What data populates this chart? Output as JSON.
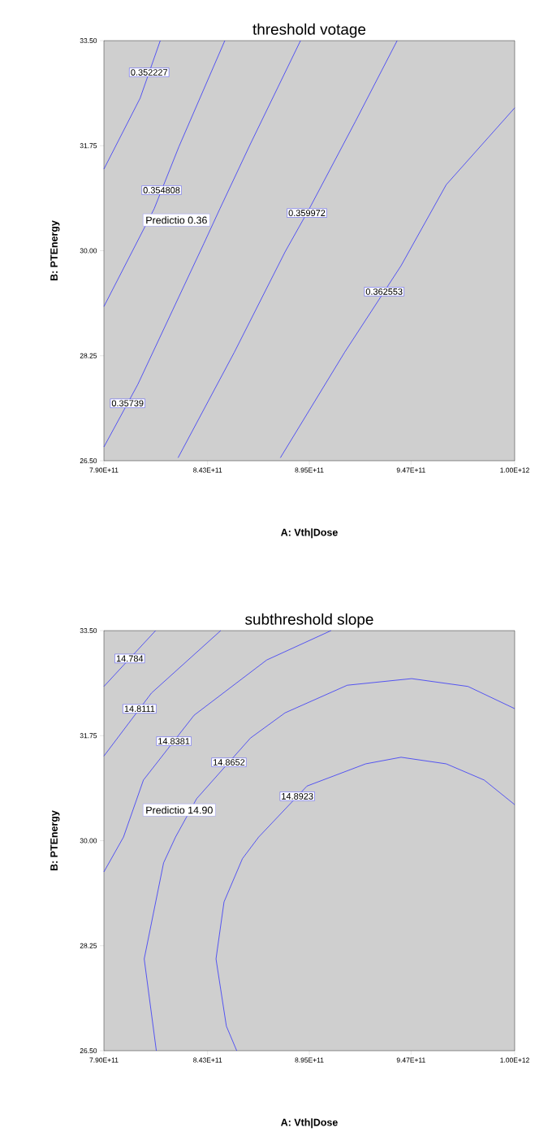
{
  "chart_data": [
    {
      "type": "line",
      "title": "threshold votage",
      "xlabel": "A: Vth|Dose",
      "ylabel": "B: PTEnergy",
      "xlim": [
        790000000000.0,
        1000000000000.0
      ],
      "ylim": [
        26.5,
        33.5
      ],
      "xticks": [
        {
          "value": 790000000000.0,
          "label": "7.90E+11"
        },
        {
          "value": 843000000000.0,
          "label": "8.43E+11"
        },
        {
          "value": 895000000000.0,
          "label": "8.95E+11"
        },
        {
          "value": 947000000000.0,
          "label": "9.47E+11"
        },
        {
          "value": 1000000000000.0,
          "label": "1.00E+12"
        }
      ],
      "yticks": [
        {
          "value": 26.5,
          "label": "26.50"
        },
        {
          "value": 28.25,
          "label": "28.25"
        },
        {
          "value": 30,
          "label": "30.00"
        },
        {
          "value": 31.75,
          "label": "31.75"
        },
        {
          "value": 33.5,
          "label": "33.50"
        }
      ],
      "marker": "none",
      "line_style": "solid",
      "series": [
        {
          "name": "0.352227",
          "color": "#2020ff",
          "x": [
            790000000000.0,
            808500000000.0,
            818800000000.0
          ],
          "values": [
            31.36,
            32.54,
            33.5
          ]
        },
        {
          "name": "0.354808",
          "color": "#2020ff",
          "x": [
            790000000000.0,
            815700000000.0,
            828300000000.0,
            851800000000.0
          ],
          "values": [
            29.07,
            30.7,
            31.73,
            33.5
          ]
        },
        {
          "name": "0.35739",
          "color": "#2020ff",
          "x": [
            790000000000.0,
            807300000000.0,
            841100000000.0,
            849300000000.0,
            864900000000.0,
            890500000000.0
          ],
          "values": [
            26.73,
            27.77,
            30.12,
            30.7,
            31.78,
            33.5
          ]
        },
        {
          "name": "0.359972",
          "color": "#2020ff",
          "x": [
            827900000000.0,
            856700000000.0,
            882600000000.0,
            895000000000.0,
            918500000000.0,
            939900000000.0
          ],
          "values": [
            26.55,
            28.31,
            29.98,
            30.7,
            32.15,
            33.5
          ]
        },
        {
          "name": "0.362553",
          "color": "#2020ff",
          "x": [
            880200000000.0,
            913100000000.0,
            941900000000.0,
            965000000000.0,
            1000000000000.0
          ],
          "values": [
            26.55,
            28.31,
            29.75,
            31.1,
            32.38
          ]
        }
      ],
      "annotations": [
        "Predictio 0.36"
      ]
    },
    {
      "type": "line",
      "title": "subthreshold slope",
      "xlabel": "A: Vth|Dose",
      "ylabel": "B: PTEnergy",
      "xlim": [
        790000000000.0,
        1000000000000.0
      ],
      "ylim": [
        26.5,
        33.5
      ],
      "xticks": [
        {
          "value": 790000000000.0,
          "label": "7.90E+11"
        },
        {
          "value": 843000000000.0,
          "label": "8.43E+11"
        },
        {
          "value": 895000000000.0,
          "label": "8.95E+11"
        },
        {
          "value": 947000000000.0,
          "label": "9.47E+11"
        },
        {
          "value": 1000000000000.0,
          "label": "1.00E+12"
        }
      ],
      "yticks": [
        {
          "value": 26.5,
          "label": "26.50"
        },
        {
          "value": 28.25,
          "label": "28.25"
        },
        {
          "value": 30,
          "label": "30.00"
        },
        {
          "value": 31.75,
          "label": "31.75"
        },
        {
          "value": 33.5,
          "label": "33.50"
        }
      ],
      "marker": "none",
      "line_style": "solid",
      "series": [
        {
          "name": "14.784",
          "color": "#2020ff",
          "x": [
            790000000000.0,
            816400000000.0
          ],
          "values": [
            32.57,
            33.5
          ]
        },
        {
          "name": "14.8111",
          "color": "#2020ff",
          "x": [
            790000000000.0,
            814300000000.0,
            849700000000.0
          ],
          "values": [
            31.41,
            32.46,
            33.5
          ]
        },
        {
          "name": "14.8381",
          "color": "#2020ff",
          "x": [
            790000000000.0,
            800000000000.0,
            810200000000.0,
            836100000000.0,
            873200000000.0,
            906100000000.0
          ],
          "values": [
            29.48,
            30.06,
            31.01,
            32.09,
            33.01,
            33.5
          ]
        },
        {
          "name": "14.8652",
          "color": "#2020ff",
          "x": [
            816800000000.0,
            810600000000.0,
            820500000000.0,
            826600000000.0,
            837400000000.0,
            864900000000.0,
            882600000000.0,
            914400000000.0,
            947300000000.0,
            976100000000.0,
            1000000000000.0
          ],
          "values": [
            26.5,
            28.03,
            29.63,
            30.06,
            30.7,
            31.71,
            32.13,
            32.59,
            32.7,
            32.57,
            32.2
          ]
        },
        {
          "name": "14.8923",
          "color": "#2020ff",
          "x": [
            857900000000.0,
            852600000000.0,
            847300000000.0,
            851400000000.0,
            860800000000.0,
            869100000000.0,
            893800000000.0,
            923800000000.0,
            941900000000.0,
            965000000000.0,
            984400000000.0,
            1000000000000.0
          ],
          "values": [
            26.5,
            26.91,
            28.03,
            28.98,
            29.7,
            30.06,
            30.91,
            31.28,
            31.39,
            31.28,
            31.01,
            30.6
          ]
        }
      ],
      "annotations": [
        "Predictio 14.90"
      ]
    }
  ]
}
